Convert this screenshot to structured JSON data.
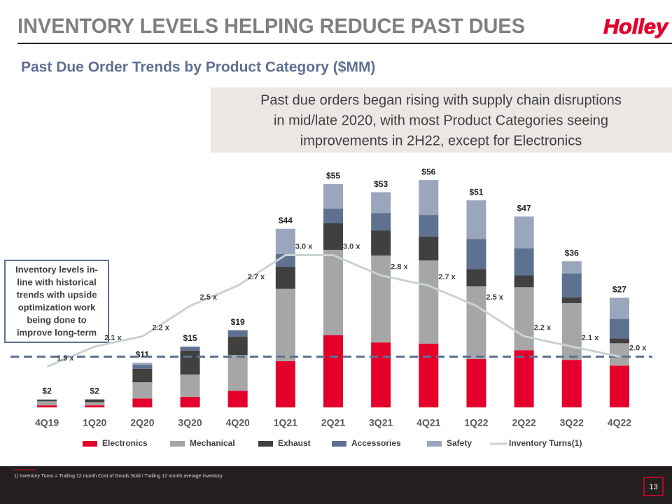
{
  "header": {
    "title": "INVENTORY LEVELS HELPING REDUCE PAST DUES",
    "logo": "Holley"
  },
  "chart_data": {
    "type": "bar",
    "stacked": true,
    "title": "Past Due Order Trends by Product Category ($MM)",
    "callout": [
      "Past due orders began rising with supply chain disruptions",
      "in mid/late 2020, with most Product Categories seeing",
      "improvements in 2H22, except for Electronics"
    ],
    "annotation": [
      "Inventory levels in-",
      "line with historical",
      "trends with upside",
      "optimization work",
      "being done to",
      "improve long-term"
    ],
    "categories": [
      "4Q19",
      "1Q20",
      "2Q20",
      "3Q20",
      "4Q20",
      "1Q21",
      "2Q21",
      "3Q21",
      "4Q21",
      "1Q22",
      "2Q22",
      "3Q22",
      "4Q22"
    ],
    "series": [
      {
        "name": "Electronics",
        "color": "#e4002b",
        "values": [
          0.5,
          0.5,
          2.2,
          2.6,
          4.1,
          11.4,
          17.8,
          16.0,
          15.7,
          11.9,
          14.1,
          11.7,
          10.3
        ]
      },
      {
        "name": "Mechanical",
        "color": "#a6a6a6",
        "values": [
          1.0,
          0.8,
          4.0,
          5.5,
          8.8,
          17.8,
          21.0,
          21.4,
          20.5,
          17.9,
          15.5,
          14.0,
          5.5
        ]
      },
      {
        "name": "Exhaust",
        "color": "#404040",
        "values": [
          0.3,
          0.6,
          3.3,
          5.9,
          4.5,
          5.5,
          6.6,
          6.2,
          5.9,
          4.3,
          2.9,
          1.4,
          1.2
        ]
      },
      {
        "name": "Accessories",
        "color": "#5f7191",
        "values": [
          0.1,
          0.1,
          1.0,
          0.9,
          1.6,
          3.1,
          3.6,
          4.3,
          5.3,
          7.4,
          6.7,
          5.9,
          4.8
        ]
      },
      {
        "name": "Safety",
        "color": "#9aa6bc",
        "values": [
          0.1,
          0.0,
          0.5,
          0.1,
          0.0,
          6.2,
          6.0,
          5.1,
          8.6,
          9.5,
          7.8,
          3.0,
          5.2
        ]
      },
      {
        "name": "Inventory Turns(1)",
        "color": "#c9d3d0",
        "type": "line",
        "axis": "y2",
        "values": [
          1.9,
          2.1,
          2.2,
          2.5,
          2.7,
          3.0,
          3.0,
          2.8,
          2.7,
          2.5,
          2.2,
          2.1,
          2.0
        ],
        "value_labels": [
          "1.9 x",
          "2.1 x",
          "2.2 x",
          "2.5 x",
          "2.7 x",
          "3.0 x",
          "3.0 x",
          "2.8 x",
          "2.7 x",
          "2.5 x",
          "2.2 x",
          "2.1 x",
          "2.0 x"
        ]
      }
    ],
    "totals": {
      "values": [
        2,
        2,
        11,
        15,
        19,
        44,
        55,
        53,
        56,
        51,
        47,
        36,
        27
      ],
      "value_labels": [
        "$2",
        "$2",
        "$11",
        "$15",
        "$19",
        "$44",
        "$55",
        "$53",
        "$56",
        "$51",
        "$47",
        "$36",
        "$27"
      ]
    },
    "reference_line": {
      "value": 2.0,
      "axis": "y2",
      "color": "#5f7191"
    },
    "ylim": [
      0,
      60
    ],
    "y2lim": [
      1.5,
      3.9
    ]
  },
  "footer": {
    "footnote": "1)     Inventory Turns = Trailing 12 month Cost of Goods Sold / Trailing 12 month average inventory",
    "page_number": "13"
  }
}
